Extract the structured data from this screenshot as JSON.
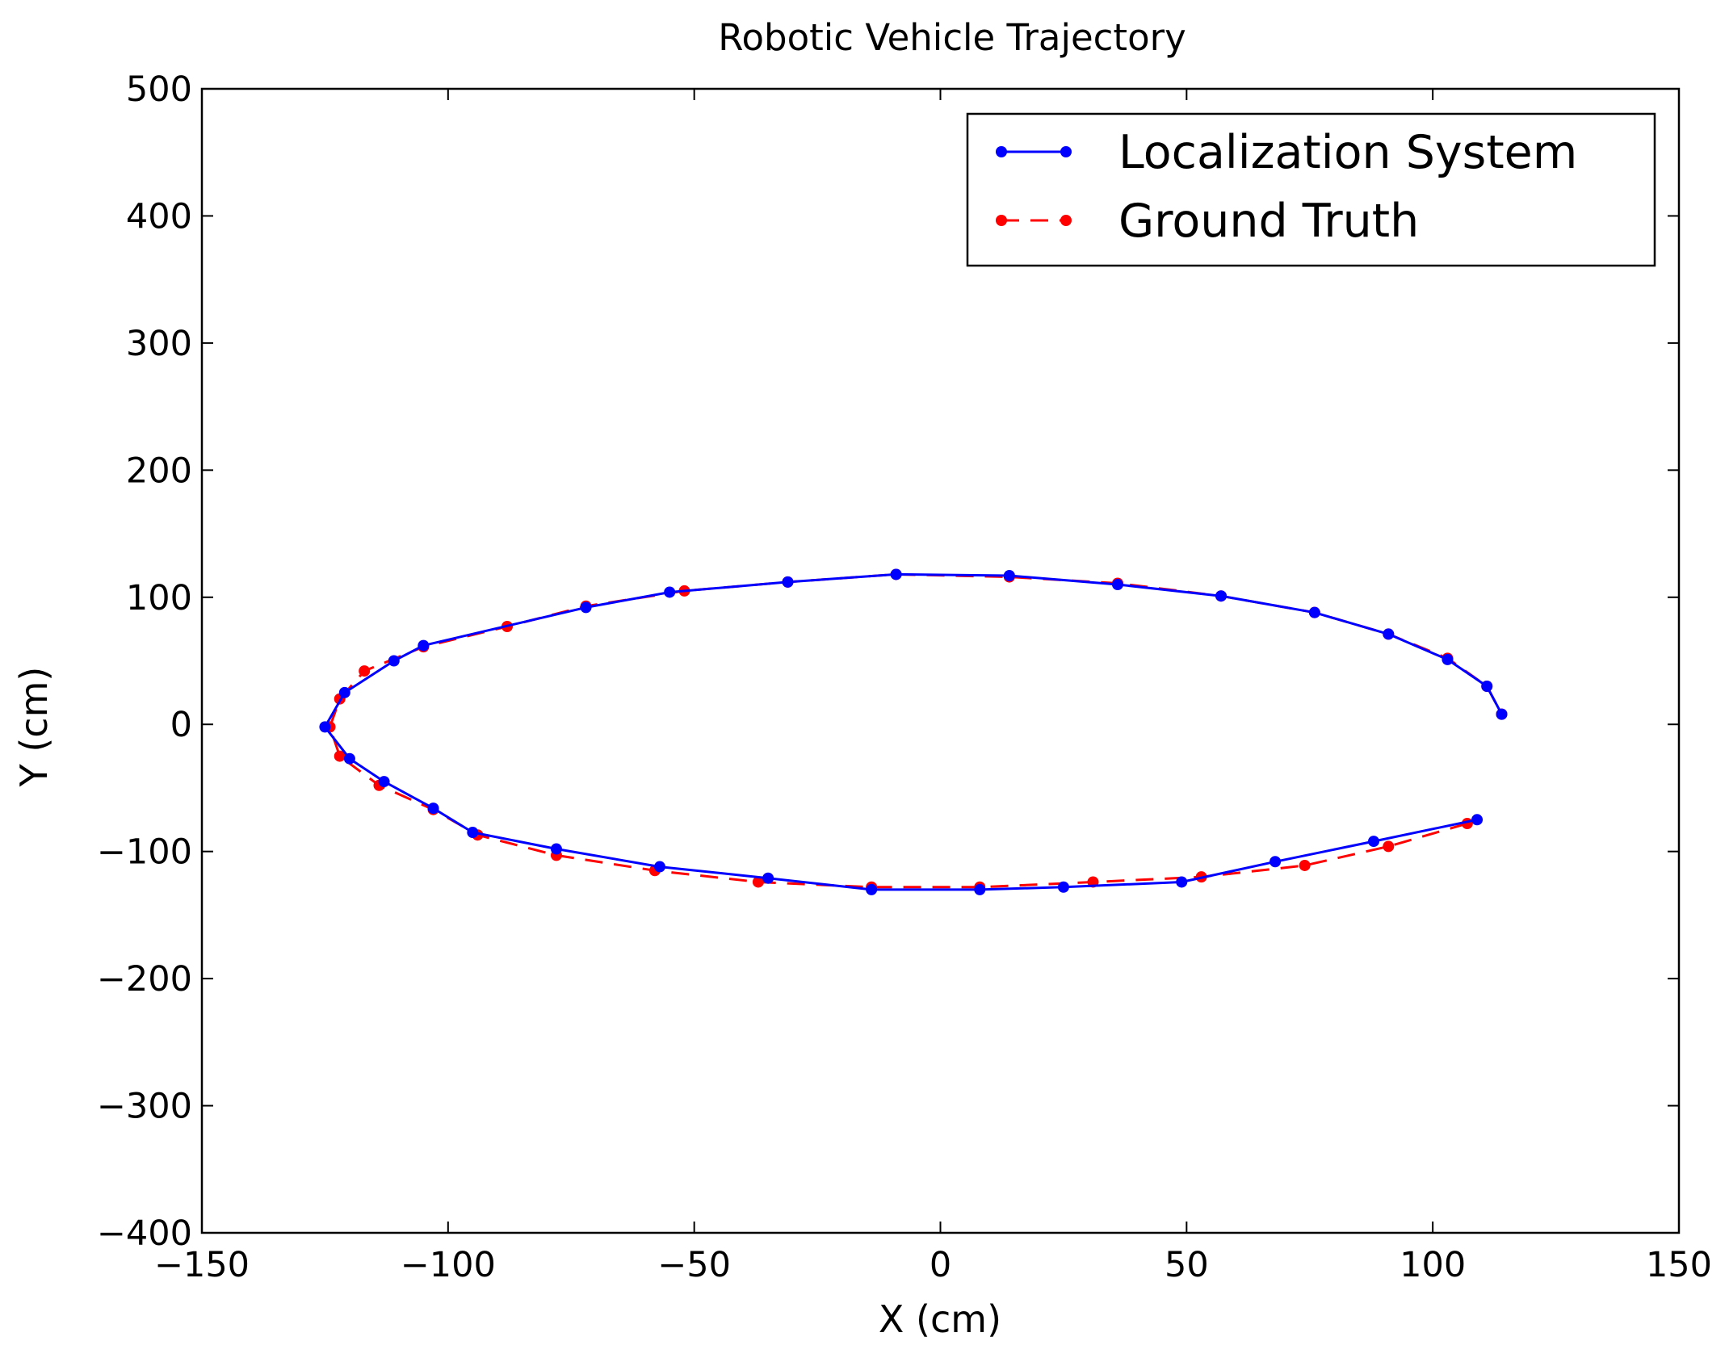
{
  "chart_data": {
    "type": "line",
    "title": "Robotic Vehicle Trajectory",
    "xlabel": "X (cm)",
    "ylabel": "Y (cm)",
    "xlim": [
      -150,
      150
    ],
    "ylim": [
      -400,
      500
    ],
    "xticks": [
      -150,
      -100,
      -50,
      0,
      50,
      100,
      150
    ],
    "yticks": [
      -400,
      -300,
      -200,
      -100,
      0,
      100,
      200,
      300,
      400,
      500
    ],
    "xtick_labels": [
      "−150",
      "−100",
      "−50",
      "0",
      "50",
      "100",
      "150"
    ],
    "ytick_labels": [
      "−400",
      "−300",
      "−200",
      "−100",
      "0",
      "100",
      "200",
      "300",
      "400",
      "500"
    ],
    "grid": false,
    "legend_position": "top-right",
    "series": [
      {
        "name": "Localization System",
        "color": "#0000ff",
        "line_style": "solid",
        "marker": "dot",
        "x": [
          109,
          88,
          68,
          49,
          25,
          8,
          -14,
          -35,
          -57,
          -78,
          -95,
          -103,
          -113,
          -120,
          -125,
          -121,
          -111,
          -105,
          -72,
          -55,
          -31,
          -9,
          14,
          36,
          57,
          76,
          91,
          103,
          111,
          114
        ],
        "y": [
          -75,
          -92,
          -108,
          -124,
          -128,
          -130,
          -130,
          -121,
          -112,
          -98,
          -85,
          -66,
          -45,
          -27,
          -2,
          25,
          50,
          62,
          92,
          104,
          112,
          118,
          117,
          110,
          101,
          88,
          71,
          51,
          30,
          8
        ]
      },
      {
        "name": "Ground Truth",
        "color": "#ff0000",
        "line_style": "dashed",
        "marker": "dot",
        "x": [
          107,
          91,
          74,
          53,
          31,
          8,
          -14,
          -37,
          -58,
          -78,
          -94,
          -103,
          -114,
          -122,
          -124,
          -122,
          -117,
          -105,
          -88,
          -72,
          -52,
          -31,
          -9,
          14,
          36,
          57,
          76,
          91,
          103,
          111,
          114
        ],
        "y": [
          -78,
          -96,
          -111,
          -120,
          -124,
          -128,
          -128,
          -124,
          -115,
          -103,
          -87,
          -67,
          -48,
          -25,
          -2,
          20,
          42,
          61,
          77,
          93,
          105,
          112,
          118,
          116,
          111,
          101,
          88,
          71,
          52,
          30,
          8
        ]
      }
    ]
  }
}
